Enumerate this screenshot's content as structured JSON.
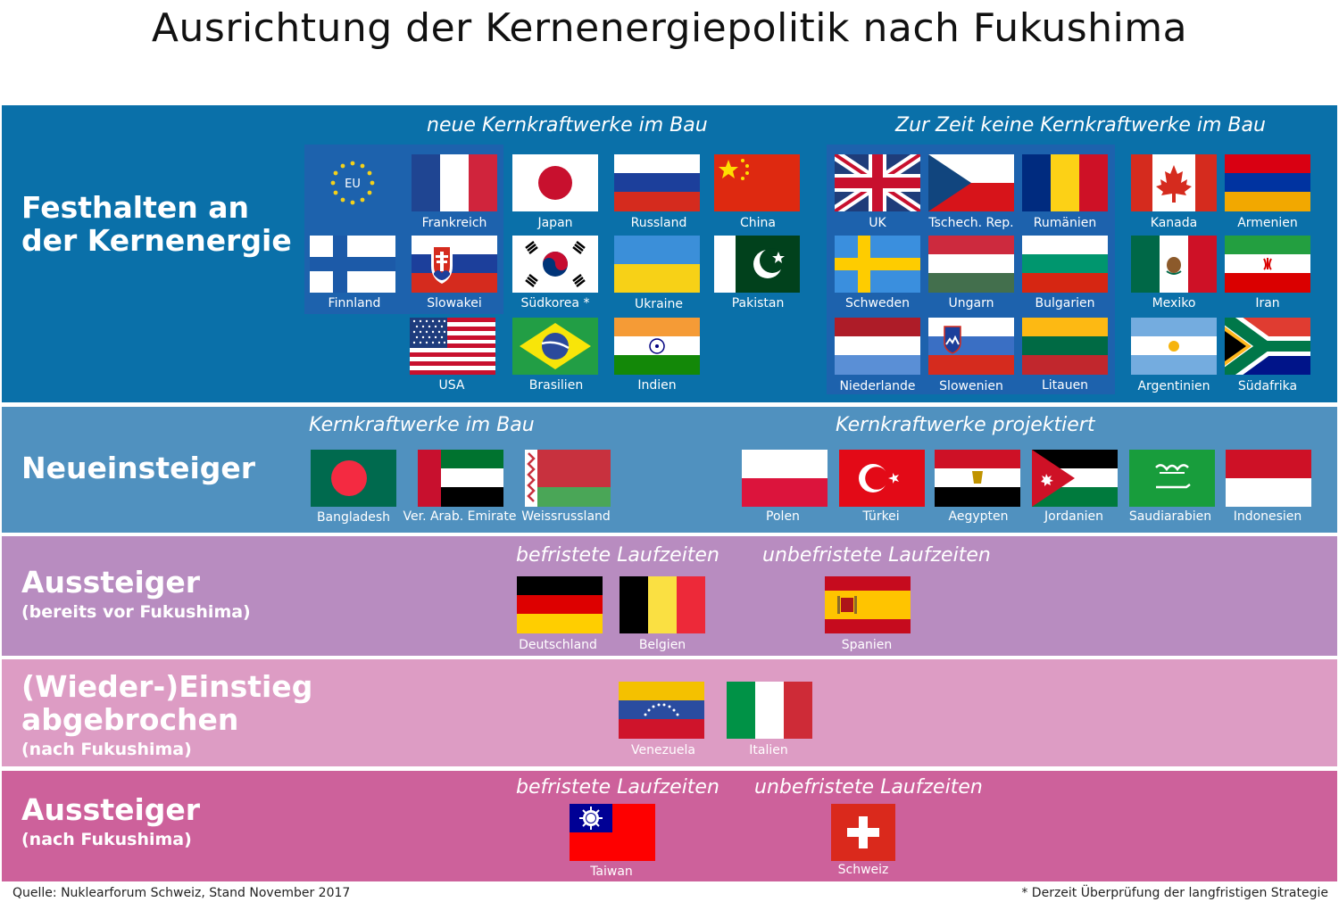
{
  "title": "Ausrichtung der Kernenergiepolitik nach Fukushima",
  "categories": {
    "festhalten": {
      "line1": "Festhalten an",
      "line2": "der Kernenergie"
    },
    "neueinsteiger": {
      "main": "Neueinsteiger"
    },
    "aussteiger_vor": {
      "main": "Aussteiger",
      "sub": "(bereits vor Fukushima)"
    },
    "abgebrochen": {
      "line1": "(Wieder-)Einstieg",
      "line2": "abgebrochen",
      "sub": "(nach Fukushima)"
    },
    "aussteiger_nach": {
      "main": "Aussteiger",
      "sub": "(nach Fukushima)"
    }
  },
  "sections": {
    "neue_bau": "neue Kernkraftwerke im Bau",
    "keine_bau": "Zur Zeit keine Kernkraftwerke im Bau",
    "kkw_bau": "Kernkraftwerke im Bau",
    "kkw_projektiert": "Kernkraftwerke projektiert",
    "befristet_1": "befristete Laufzeiten",
    "unbefristet_1": "unbefristete Laufzeiten",
    "befristet_2": "befristete Laufzeiten",
    "unbefristet_2": "unbefristete Laufzeiten"
  },
  "flags": {
    "eu": {
      "text": "EU"
    },
    "frankreich": {
      "label": "Frankreich"
    },
    "japan": {
      "label": "Japan"
    },
    "russland": {
      "label": "Russland"
    },
    "china": {
      "label": "China"
    },
    "finnland": {
      "label": "Finnland"
    },
    "slowakei": {
      "label": "Slowakei"
    },
    "suedkorea": {
      "label": "Südkorea *"
    },
    "ukraine": {
      "label": "Ukraine"
    },
    "pakistan": {
      "label": "Pakistan"
    },
    "usa": {
      "label": "USA"
    },
    "brasilien": {
      "label": "Brasilien"
    },
    "indien": {
      "label": "Indien"
    },
    "uk": {
      "label": "UK"
    },
    "tschechien": {
      "label": "Tschech. Rep."
    },
    "rumaenien": {
      "label": "Rumänien"
    },
    "kanada": {
      "label": "Kanada"
    },
    "armenien": {
      "label": "Armenien"
    },
    "schweden": {
      "label": "Schweden"
    },
    "ungarn": {
      "label": "Ungarn"
    },
    "bulgarien": {
      "label": "Bulgarien"
    },
    "mexiko": {
      "label": "Mexiko"
    },
    "iran": {
      "label": "Iran"
    },
    "niederlande": {
      "label": "Niederlande"
    },
    "slowenien": {
      "label": "Slowenien"
    },
    "litauen": {
      "label": "Litauen"
    },
    "argentinien": {
      "label": "Argentinien"
    },
    "suedafrika": {
      "label": "Südafrika"
    },
    "bangladesh": {
      "label": "Bangladesh"
    },
    "vae": {
      "label": "Ver. Arab. Emirate"
    },
    "weissrussland": {
      "label": "Weissrussland"
    },
    "polen": {
      "label": "Polen"
    },
    "tuerkei": {
      "label": "Türkei"
    },
    "aegypten": {
      "label": "Aegypten"
    },
    "jordanien": {
      "label": "Jordanien"
    },
    "saudiarabien": {
      "label": "Saudiarabien"
    },
    "indonesien": {
      "label": "Indonesien"
    },
    "deutschland": {
      "label": "Deutschland"
    },
    "belgien": {
      "label": "Belgien"
    },
    "spanien": {
      "label": "Spanien"
    },
    "venezuela": {
      "label": "Venezuela"
    },
    "italien": {
      "label": "Italien"
    },
    "taiwan": {
      "label": "Taiwan"
    },
    "schweiz": {
      "label": "Schweiz"
    }
  },
  "footer": {
    "source": "Quelle: Nuklearforum Schweiz, Stand November 2017",
    "note": "* Derzeit Überprüfung der langfristigen Strategie"
  }
}
